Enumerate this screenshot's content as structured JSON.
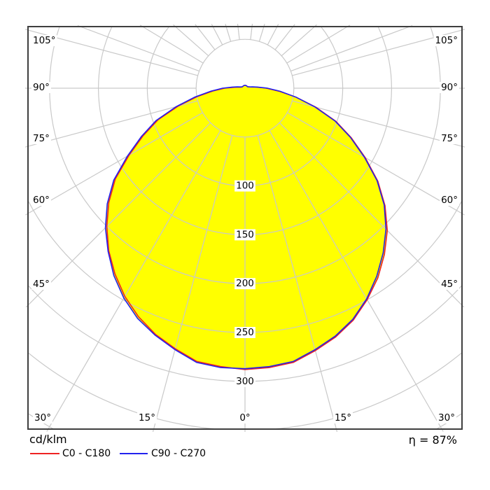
{
  "legend": {
    "unit_label": "cd/klm",
    "series": [
      {
        "label": "C0 - C180",
        "color": "#ee2222"
      },
      {
        "label": "C90 - C270",
        "color": "#2222ee"
      }
    ]
  },
  "footer": {
    "eta_label": "η = 87%"
  },
  "chart_data": {
    "type": "polar-intensity",
    "unit": "cd/klm",
    "efficiency_percent": 87,
    "fill_color": "#ffff00",
    "gamma_deg": [
      0,
      5,
      10,
      15,
      20,
      25,
      30,
      35,
      40,
      45,
      50,
      55,
      60,
      65,
      70,
      75,
      80,
      85,
      90,
      95,
      100,
      105,
      120,
      150,
      180
    ],
    "series": [
      {
        "name": "C0 - C180",
        "color": "#ee2222",
        "right_r": [
          288,
          287,
          285,
          278,
          271,
          262,
          250,
          237,
          222,
          206,
          187,
          166,
          142,
          120,
          99,
          75,
          53,
          35,
          22,
          12,
          7,
          5,
          3,
          3,
          3
        ],
        "left_r": [
          288,
          286,
          284,
          276,
          268,
          258,
          246,
          232,
          217,
          200,
          182,
          162,
          137,
          115,
          95,
          71,
          50,
          33,
          21,
          11,
          6,
          4,
          3,
          3,
          3
        ]
      },
      {
        "name": "C90 - C270",
        "color": "#2222ee",
        "right_r": [
          287,
          286,
          284,
          277,
          270,
          261,
          249,
          235,
          220,
          204,
          186,
          165,
          141,
          119,
          98,
          74,
          53,
          36,
          23,
          13,
          8,
          5,
          3,
          3,
          3
        ],
        "left_r": [
          288,
          287,
          285,
          277,
          269,
          260,
          248,
          234,
          218,
          202,
          184,
          164,
          139,
          117,
          97,
          73,
          52,
          35,
          23,
          13,
          8,
          5,
          3,
          3,
          3
        ]
      }
    ],
    "grid": {
      "grid_color": "#c9c9c9",
      "radial_step": 50,
      "radial_max": 400,
      "radial_tick_labels": [
        "100",
        "150",
        "200",
        "250",
        "300"
      ],
      "angle_step_deg": 15,
      "angle_labels_left": [
        "105°",
        "90°",
        "75°",
        "60°",
        "45°"
      ],
      "angle_labels_right": [
        "105°",
        "90°",
        "75°",
        "60°",
        "45°"
      ],
      "angle_labels_bottom": [
        "30°",
        "15°",
        "0°",
        "15°",
        "30°"
      ]
    }
  }
}
